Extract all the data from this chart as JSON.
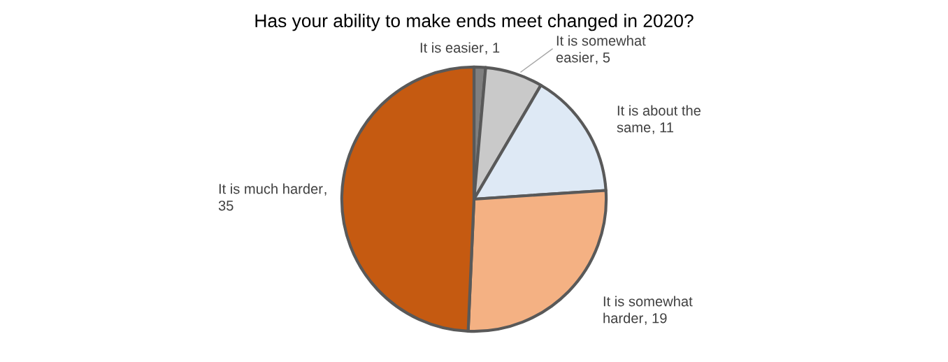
{
  "chart_data": {
    "type": "pie",
    "title": "Has your ability to make ends meet changed in 2020?",
    "categories": [
      "It is easier",
      "It is somewhat easier",
      "It is about the same",
      "It is somewhat harder",
      "It is much harder"
    ],
    "values": [
      1,
      5,
      11,
      19,
      35
    ],
    "value_labels": [
      ", 1",
      ", 5",
      ", 11",
      ", 19",
      ", 35"
    ],
    "colors": [
      "#7f7f7f",
      "#c9c9c9",
      "#dee9f5",
      "#f4b183",
      "#c55a11"
    ]
  }
}
